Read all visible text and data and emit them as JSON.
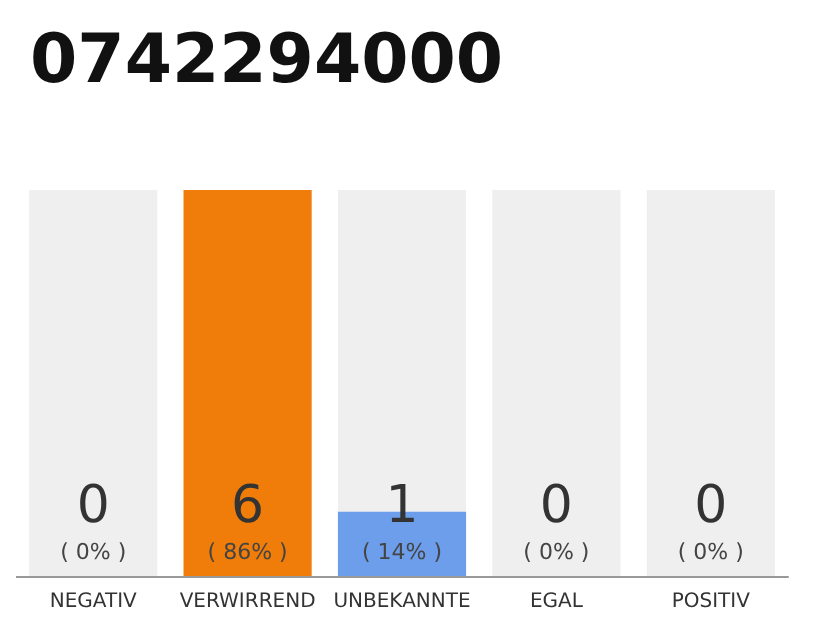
{
  "chart_data": {
    "type": "bar",
    "title": "0742294000",
    "categories": [
      "NEGATIV",
      "VERWIRREND",
      "UNBEKANNTE",
      "EGAL",
      "POSITIV"
    ],
    "values": [
      0,
      6,
      1,
      0,
      0
    ],
    "colors": [
      "#f07d0a",
      "#f07d0a",
      "#6d9eeb",
      "#6d9eeb",
      "#6d9eeb"
    ],
    "value_labels": [
      "0\n( 0% )",
      "6\n( 86% )",
      "1\n( 14% )",
      "0\n( 0% )",
      "0\n( 0% )"
    ],
    "bands": [
      {
        "axis": "x",
        "from": "NEGATIV",
        "to": "NEGATIV",
        "color": "#efefef"
      },
      {
        "axis": "x",
        "from": "UNBEKANNTE",
        "to": "UNBEKANNTE",
        "color": "#efefef"
      },
      {
        "axis": "x",
        "from": "EGAL",
        "to": "EGAL",
        "color": "#efefef"
      },
      {
        "axis": "x",
        "from": "POSITIV",
        "to": "POSITIV",
        "color": "#efefef"
      }
    ],
    "grid": false
  }
}
